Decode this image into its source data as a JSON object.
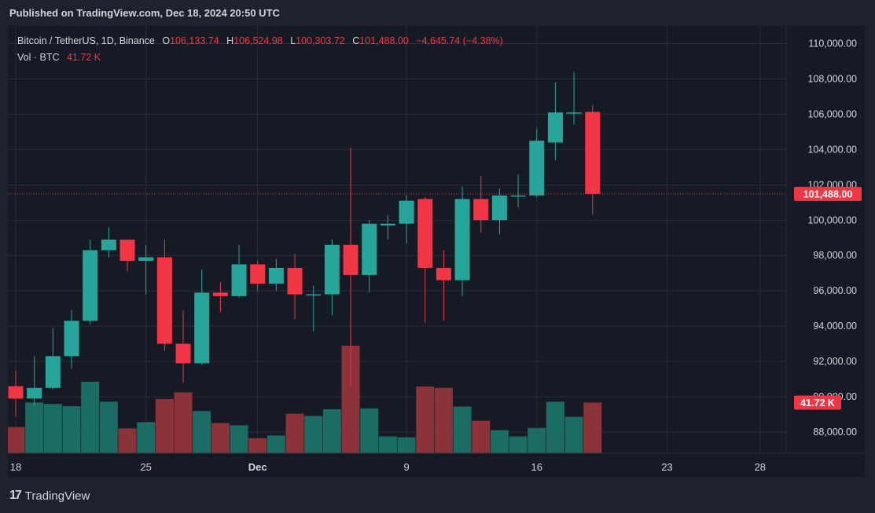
{
  "header": {
    "published": "Published on TradingView.com, Dec 18, 2024 20:50 UTC"
  },
  "legend": {
    "symbol": "Bitcoin / TetherUS, 1D, Binance",
    "open_label": "O",
    "open": "106,133.74",
    "high_label": "H",
    "high": "106,524.98",
    "low_label": "L",
    "low": "100,303.72",
    "close_label": "C",
    "close": "101,488.00",
    "change": "−4,645.74 (−4.38%)",
    "vol_label": "Vol · BTC",
    "vol_value": "41.72 K"
  },
  "footer": {
    "brand": "TradingView",
    "logo": "17"
  },
  "colors": {
    "up": "#26a69a",
    "down": "#f23645",
    "up_vol": "#1c6c66",
    "down_vol": "#8c3339",
    "grid": "#2a2e39",
    "text": "#d1d4dc"
  },
  "chart_data": {
    "type": "candlestick",
    "price_axis": {
      "min": 86800,
      "max": 111000,
      "ticks": [
        88000,
        90000,
        92000,
        94000,
        96000,
        98000,
        100000,
        102000,
        104000,
        106000,
        108000,
        110000
      ]
    },
    "tick_labels": [
      "88,000.00",
      "90,000.00",
      "92,000.00",
      "94,000.00",
      "96,000.00",
      "98,000.00",
      "100,000.00",
      "102,000.00",
      "104,000.00",
      "106,000.00",
      "108,000.00",
      "110,000.00"
    ],
    "x_labels": [
      {
        "label": "18",
        "day": 0
      },
      {
        "label": "25",
        "day": 7
      },
      {
        "label": "Dec",
        "day": 13,
        "bold": true
      },
      {
        "label": "9",
        "day": 21
      },
      {
        "label": "16",
        "day": 28
      },
      {
        "label": "23",
        "day": 35
      },
      {
        "label": "28",
        "day": 40
      }
    ],
    "last_price": 101488,
    "last_price_label": "101,488.00",
    "volume_label": "41.72 K",
    "candles": [
      {
        "o": 90600,
        "h": 91500,
        "l": 88900,
        "c": 89900,
        "v": 5.9
      },
      {
        "o": 89900,
        "h": 92300,
        "l": 89500,
        "c": 90500,
        "v": 11.4
      },
      {
        "o": 90500,
        "h": 93900,
        "l": 90400,
        "c": 92300,
        "v": 11.1
      },
      {
        "o": 92300,
        "h": 94900,
        "l": 91600,
        "c": 94300,
        "v": 10.6
      },
      {
        "o": 94300,
        "h": 98900,
        "l": 94100,
        "c": 98300,
        "v": 16.1
      },
      {
        "o": 98300,
        "h": 99600,
        "l": 97900,
        "c": 98900,
        "v": 11.6
      },
      {
        "o": 98900,
        "h": 98900,
        "l": 97100,
        "c": 97700,
        "v": 5.6
      },
      {
        "o": 97700,
        "h": 98600,
        "l": 95800,
        "c": 97900,
        "v": 7.0
      },
      {
        "o": 97900,
        "h": 98900,
        "l": 92600,
        "c": 93000,
        "v": 12.2
      },
      {
        "o": 93000,
        "h": 94900,
        "l": 90800,
        "c": 91900,
        "v": 13.7
      },
      {
        "o": 91900,
        "h": 97200,
        "l": 91800,
        "c": 95900,
        "v": 9.5
      },
      {
        "o": 95900,
        "h": 96500,
        "l": 94800,
        "c": 95700,
        "v": 6.8
      },
      {
        "o": 95700,
        "h": 98600,
        "l": 95600,
        "c": 97500,
        "v": 6.3
      },
      {
        "o": 97500,
        "h": 97700,
        "l": 96000,
        "c": 96400,
        "v": 3.4
      },
      {
        "o": 96400,
        "h": 97800,
        "l": 96000,
        "c": 97300,
        "v": 4.0
      },
      {
        "o": 97300,
        "h": 98100,
        "l": 94400,
        "c": 95800,
        "v": 8.9
      },
      {
        "o": 95800,
        "h": 96300,
        "l": 93700,
        "c": 95800,
        "v": 8.4
      },
      {
        "o": 95800,
        "h": 98900,
        "l": 94600,
        "c": 98600,
        "v": 9.9
      },
      {
        "o": 98600,
        "h": 104100,
        "l": 90600,
        "c": 96900,
        "v": 24.2
      },
      {
        "o": 96900,
        "h": 100000,
        "l": 95900,
        "c": 99800,
        "v": 10.1
      },
      {
        "o": 99700,
        "h": 100300,
        "l": 98900,
        "c": 99800,
        "v": 3.8
      },
      {
        "o": 99800,
        "h": 101400,
        "l": 98700,
        "c": 101100,
        "v": 3.6
      },
      {
        "o": 101200,
        "h": 101300,
        "l": 94200,
        "c": 97300,
        "v": 15.0
      },
      {
        "o": 97300,
        "h": 98300,
        "l": 94300,
        "c": 96600,
        "v": 14.7
      },
      {
        "o": 96600,
        "h": 101900,
        "l": 95700,
        "c": 101200,
        "v": 10.5
      },
      {
        "o": 101200,
        "h": 102500,
        "l": 99300,
        "c": 100000,
        "v": 7.3
      },
      {
        "o": 100000,
        "h": 101800,
        "l": 99200,
        "c": 101400,
        "v": 5.2
      },
      {
        "o": 101400,
        "h": 102600,
        "l": 100700,
        "c": 101400,
        "v": 3.8
      },
      {
        "o": 101400,
        "h": 105200,
        "l": 101300,
        "c": 104500,
        "v": 5.7
      },
      {
        "o": 104400,
        "h": 107800,
        "l": 103400,
        "c": 106100,
        "v": 11.6
      },
      {
        "o": 106100,
        "h": 108400,
        "l": 105400,
        "c": 106100,
        "v": 8.2
      },
      {
        "o": 106134,
        "h": 106525,
        "l": 100304,
        "c": 101488,
        "v": 11.4
      }
    ]
  }
}
